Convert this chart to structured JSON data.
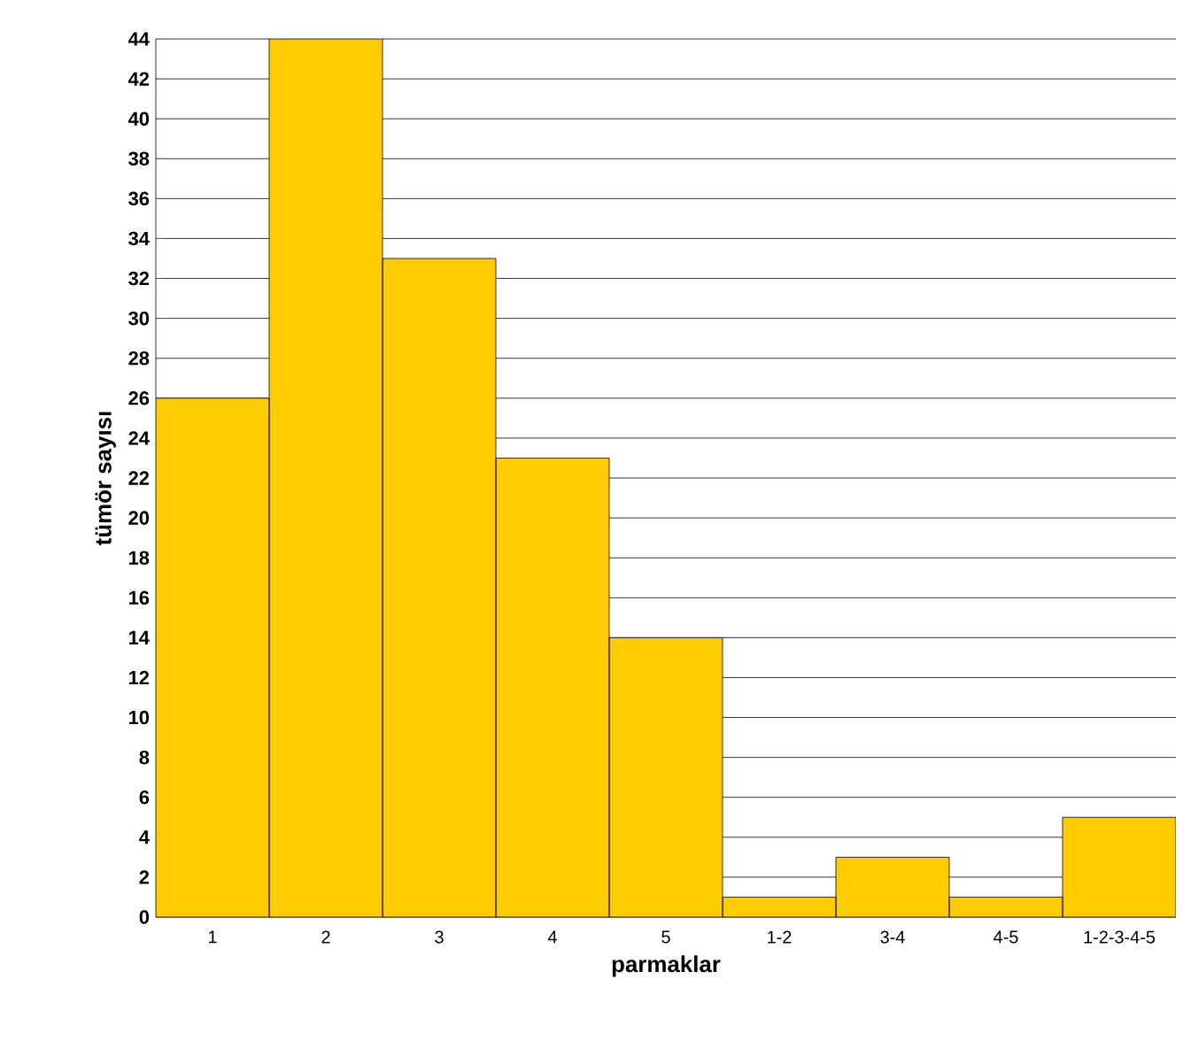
{
  "chart_data": {
    "type": "bar",
    "xlabel": "parmaklar",
    "ylabel": "tümör sayısı",
    "categories": [
      "1",
      "2",
      "3",
      "4",
      "5",
      "1-2",
      "3-4",
      "4-5",
      "1-2-3-4-5"
    ],
    "values": [
      26,
      44,
      33,
      23,
      14,
      1,
      3,
      1,
      5
    ],
    "color": "#ffcc00",
    "ylim": [
      0,
      44
    ],
    "yticks": [
      0,
      2,
      4,
      6,
      8,
      10,
      12,
      14,
      16,
      18,
      20,
      22,
      24,
      26,
      28,
      30,
      32,
      34,
      36,
      38,
      40,
      42,
      44
    ],
    "grid": "y"
  }
}
